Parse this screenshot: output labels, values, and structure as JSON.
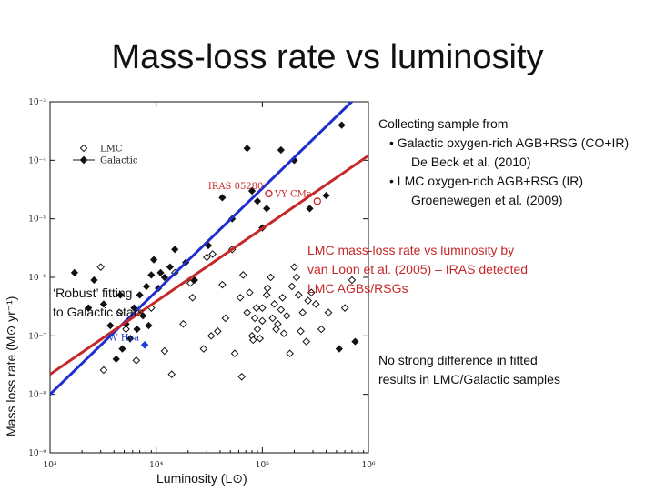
{
  "title": "Mass-loss rate vs luminosity",
  "notes": {
    "collecting": "Collecting sample from",
    "bullet1": "•  Galactic oxygen-rich AGB+RSG (CO+IR)",
    "bullet1_ref": "De Beck et al. (2010)",
    "bullet2": "•  LMC oxygen-rich AGB+RSG (IR)",
    "bullet2_ref": "Groenewegen et al. (2009)",
    "lmc_line1": "LMC mass-loss rate vs luminosity by",
    "lmc_line2": "van Loon et al. (2005) – IRAS detected",
    "lmc_line3": "LMC AGBs/RSGs",
    "robust_line1": "‘Robust’ fitting",
    "robust_line2": "to Galactic stars",
    "no_strong_line1": "No strong difference in fitted",
    "no_strong_line2": "results in LMC/Galactic samples"
  },
  "axis_labels": {
    "y": "Mass loss rate (M⊙ yr⁻¹)",
    "x": "Luminosity (L⊙)"
  },
  "chart_data": {
    "type": "scatter",
    "x_scale": "log",
    "y_scale": "log",
    "xlim": [
      1000,
      1000000
    ],
    "ylim": [
      1e-09,
      0.001
    ],
    "x_ticks": [
      {
        "value": 1000,
        "label": "10³"
      },
      {
        "value": 10000,
        "label": "10⁴"
      },
      {
        "value": 100000,
        "label": "10⁵"
      },
      {
        "value": 1000000,
        "label": "10⁶"
      }
    ],
    "y_ticks": [
      {
        "value": 0.001,
        "label": "10⁻³"
      },
      {
        "value": 0.0001,
        "label": "10⁻⁴"
      },
      {
        "value": 1e-05,
        "label": "10⁻⁵"
      },
      {
        "value": 1e-06,
        "label": "10⁻⁶"
      },
      {
        "value": 1e-07,
        "label": "10⁻⁷"
      },
      {
        "value": 1e-08,
        "label": "10⁻⁸"
      },
      {
        "value": 1e-09,
        "label": "10⁻⁹"
      }
    ],
    "legend": {
      "placement": "top-left",
      "entries": [
        {
          "name": "LMC",
          "marker": "open-diamond"
        },
        {
          "name": "Galactic",
          "marker": "filled-diamond"
        }
      ]
    },
    "series": [
      {
        "name": "LMC",
        "marker": "open-diamond",
        "color": "#111111",
        "points": [
          [
            3000,
            1.5e-06
          ],
          [
            4500,
            2.5e-07
          ],
          [
            5200,
            1.3e-07
          ],
          [
            9000,
            3e-07
          ],
          [
            12000,
            5.5e-08
          ],
          [
            15000,
            1.2e-06
          ],
          [
            18000,
            1.6e-07
          ],
          [
            22000,
            4.5e-07
          ],
          [
            30000,
            2.2e-06
          ],
          [
            34000,
            2.5e-06
          ],
          [
            42000,
            7.5e-07
          ],
          [
            52000,
            3e-06
          ],
          [
            62000,
            4.5e-07
          ],
          [
            66000,
            1.1e-06
          ],
          [
            72000,
            2.5e-07
          ],
          [
            80000,
            1e-07
          ],
          [
            82000,
            8.5e-08
          ],
          [
            85000,
            2e-07
          ],
          [
            90000,
            1.3e-07
          ],
          [
            95000,
            9e-08
          ],
          [
            100000,
            3e-07
          ],
          [
            110000,
            5e-07
          ],
          [
            120000,
            1e-06
          ],
          [
            130000,
            3.5e-07
          ],
          [
            140000,
            1.6e-07
          ],
          [
            150000,
            2.8e-07
          ],
          [
            160000,
            1.1e-07
          ],
          [
            170000,
            2.2e-07
          ],
          [
            190000,
            7e-07
          ],
          [
            200000,
            1.5e-06
          ],
          [
            220000,
            5e-07
          ],
          [
            240000,
            2.5e-07
          ],
          [
            260000,
            8e-08
          ],
          [
            290000,
            5.5e-07
          ],
          [
            320000,
            3.5e-07
          ],
          [
            360000,
            1.3e-07
          ],
          [
            420000,
            2.5e-07
          ],
          [
            600000,
            3e-07
          ],
          [
            700000,
            9e-07
          ],
          [
            45000,
            2e-07
          ],
          [
            38000,
            1.2e-07
          ],
          [
            14000,
            2.2e-08
          ],
          [
            6500,
            3.8e-08
          ],
          [
            28000,
            6e-08
          ],
          [
            55000,
            5e-08
          ],
          [
            33000,
            1e-07
          ],
          [
            64000,
            2e-08
          ],
          [
            76000,
            5.5e-07
          ],
          [
            88000,
            3e-07
          ],
          [
            112000,
            6.5e-07
          ],
          [
            125000,
            2e-07
          ],
          [
            135000,
            1.3e-07
          ],
          [
            155000,
            4.5e-07
          ],
          [
            182000,
            5e-08
          ],
          [
            210000,
            1e-06
          ],
          [
            230000,
            1.2e-07
          ],
          [
            270000,
            4e-07
          ],
          [
            3200,
            2.6e-08
          ],
          [
            21000,
            8e-07
          ],
          [
            100000,
            1.8e-07
          ]
        ]
      },
      {
        "name": "Galactic",
        "marker": "filled-diamond",
        "color": "#111111",
        "points": [
          [
            1700,
            1.2e-06
          ],
          [
            2600,
            9e-07
          ],
          [
            3200,
            3.5e-07
          ],
          [
            3700,
            1.5e-07
          ],
          [
            4200,
            4e-08
          ],
          [
            4800,
            6e-08
          ],
          [
            5200,
            1.6e-07
          ],
          [
            5700,
            9e-08
          ],
          [
            6200,
            3e-07
          ],
          [
            6600,
            1.3e-07
          ],
          [
            7000,
            5e-07
          ],
          [
            7500,
            2.2e-07
          ],
          [
            8100,
            7e-07
          ],
          [
            9000,
            1.1e-06
          ],
          [
            9500,
            2e-06
          ],
          [
            10500,
            6.5e-07
          ],
          [
            11000,
            1.2e-06
          ],
          [
            12000,
            1e-06
          ],
          [
            13500,
            1.5e-06
          ],
          [
            15000,
            3e-06
          ],
          [
            19000,
            1.8e-06
          ],
          [
            23000,
            9e-07
          ],
          [
            31000,
            3.5e-06
          ],
          [
            42000,
            2.3e-05
          ],
          [
            52000,
            1e-05
          ],
          [
            72000,
            0.00016
          ],
          [
            80000,
            3e-05
          ],
          [
            100000,
            7e-06
          ],
          [
            110000,
            1.5e-05
          ],
          [
            150000,
            0.00015
          ],
          [
            200000,
            0.0001
          ],
          [
            280000,
            1.5e-05
          ],
          [
            400000,
            2.5e-05
          ],
          [
            560000,
            0.0004
          ],
          [
            750000,
            8e-08
          ],
          [
            530000,
            6e-08
          ],
          [
            90000,
            2e-05
          ],
          [
            2300,
            3e-07
          ],
          [
            8500,
            1.5e-07
          ],
          [
            4600,
            5e-07
          ]
        ]
      }
    ],
    "labelled_points": [
      {
        "name": "IRAS 05280",
        "x": 115000,
        "y": 2.7e-05,
        "marker": "open-circle",
        "color": "#c62828"
      },
      {
        "name": "VY CMa",
        "x": 330000,
        "y": 2e-05,
        "marker": "open-circle",
        "color": "#c62828"
      },
      {
        "name": "W Hya",
        "x": 7800,
        "y": 7e-08,
        "marker": "filled-diamond",
        "color": "#1e3fd0"
      }
    ],
    "fits": [
      {
        "name": "blue",
        "color": "#1f2ecf",
        "x": [
          1000,
          1000000
        ],
        "y": [
          1e-08,
          0.0019
        ]
      },
      {
        "name": "red",
        "color": "#c62828",
        "x": [
          1000,
          1000000
        ],
        "y": [
          2.2e-08,
          0.00012
        ]
      }
    ]
  }
}
